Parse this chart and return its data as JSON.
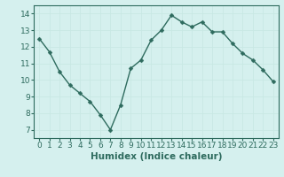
{
  "x": [
    0,
    1,
    2,
    3,
    4,
    5,
    6,
    7,
    8,
    9,
    10,
    11,
    12,
    13,
    14,
    15,
    16,
    17,
    18,
    19,
    20,
    21,
    22,
    23
  ],
  "y": [
    12.5,
    11.7,
    10.5,
    9.7,
    9.2,
    8.7,
    7.9,
    7.0,
    8.5,
    10.7,
    11.2,
    12.4,
    13.0,
    13.9,
    13.5,
    13.2,
    13.5,
    12.9,
    12.9,
    12.2,
    11.6,
    11.2,
    10.6,
    9.9
  ],
  "line_color": "#2e6b5e",
  "marker": "D",
  "marker_size": 2.5,
  "bg_color": "#d5f0ee",
  "grid_color": "#c8e8e4",
  "xlabel": "Humidex (Indice chaleur)",
  "ylim": [
    6.5,
    14.5
  ],
  "xlim": [
    -0.5,
    23.5
  ],
  "yticks": [
    7,
    8,
    9,
    10,
    11,
    12,
    13,
    14
  ],
  "xticks": [
    0,
    1,
    2,
    3,
    4,
    5,
    6,
    7,
    8,
    9,
    10,
    11,
    12,
    13,
    14,
    15,
    16,
    17,
    18,
    19,
    20,
    21,
    22,
    23
  ],
  "tick_label_fontsize": 6.5,
  "xlabel_fontsize": 7.5,
  "tick_color": "#2e6b5e",
  "axis_color": "#2e6b5e",
  "line_width": 1.0
}
